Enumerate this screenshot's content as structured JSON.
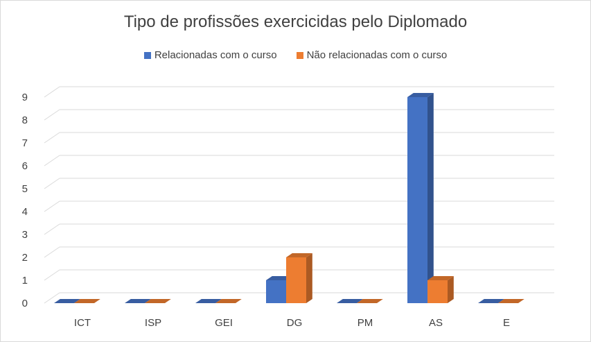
{
  "chart_data": {
    "type": "bar",
    "title": "Tipo de profissões exercicidas pelo Diplomado",
    "categories": [
      "ICT",
      "ISP",
      "GEI",
      "DG",
      "PM",
      "AS",
      "E"
    ],
    "series": [
      {
        "name": "Relacionadas com o curso",
        "values": [
          0,
          0,
          0,
          1,
          0,
          9,
          0
        ],
        "color": "#4472c4"
      },
      {
        "name": "Não relacionadas com o curso",
        "values": [
          0,
          0,
          0,
          2,
          0,
          1,
          0
        ],
        "color": "#ed7d31"
      }
    ],
    "ylim": [
      0,
      9
    ],
    "yticks": [
      0,
      1,
      2,
      3,
      4,
      5,
      6,
      7,
      8,
      9
    ],
    "grid": true,
    "legend_position": "top"
  }
}
